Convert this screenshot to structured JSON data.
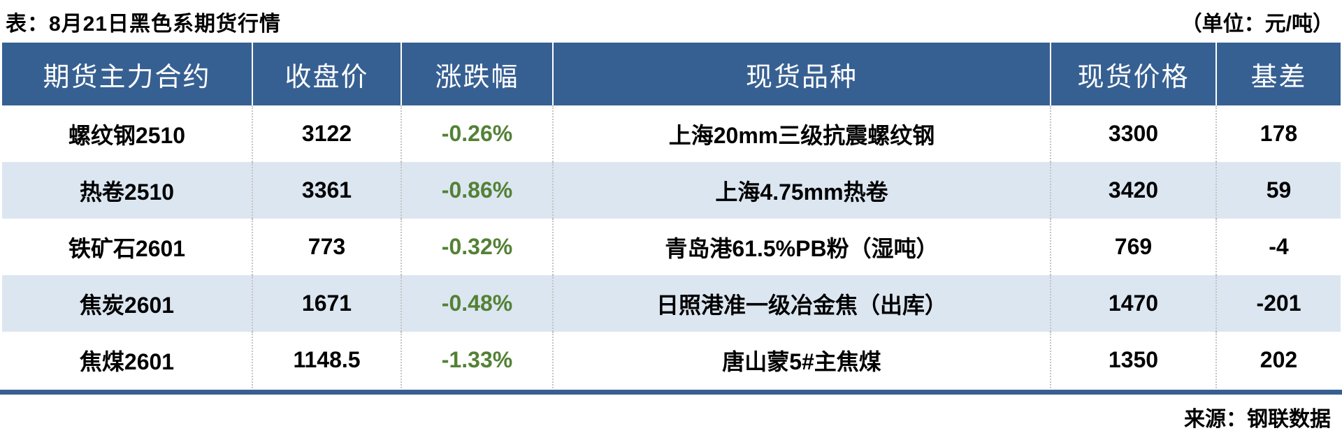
{
  "title_bar": {
    "title": "表：8月21日黑色系期货行情",
    "unit": "（单位：元/吨）"
  },
  "footer": {
    "source": "来源：钢联数据"
  },
  "colors": {
    "header_bg": "#376092",
    "header_text": "#ffffff",
    "row_alt_bg": "#dce6f1",
    "change_negative": "#538135",
    "bottom_bar": "#376092"
  },
  "chart_data": {
    "type": "table",
    "title": "8月21日黑色系期货行情",
    "unit": "元/吨",
    "source": "钢联数据",
    "columns": [
      "期货主力合约",
      "收盘价",
      "涨跌幅",
      "现货品种",
      "现货价格",
      "基差"
    ],
    "rows": [
      [
        "螺纹钢2510",
        "3122",
        "-0.26%",
        "上海20mm三级抗震螺纹钢",
        "3300",
        "178"
      ],
      [
        "热卷2510",
        "3361",
        "-0.86%",
        "上海4.75mm热卷",
        "3420",
        "59"
      ],
      [
        "铁矿石2601",
        "773",
        "-0.32%",
        "青岛港61.5%PB粉（湿吨）",
        "769",
        "-4"
      ],
      [
        "焦炭2601",
        "1671",
        "-0.48%",
        "日照港准一级冶金焦（出库）",
        "1470",
        "-201"
      ],
      [
        "焦煤2601",
        "1148.5",
        "-1.33%",
        "唐山蒙5#主焦煤",
        "1350",
        "202"
      ]
    ]
  }
}
